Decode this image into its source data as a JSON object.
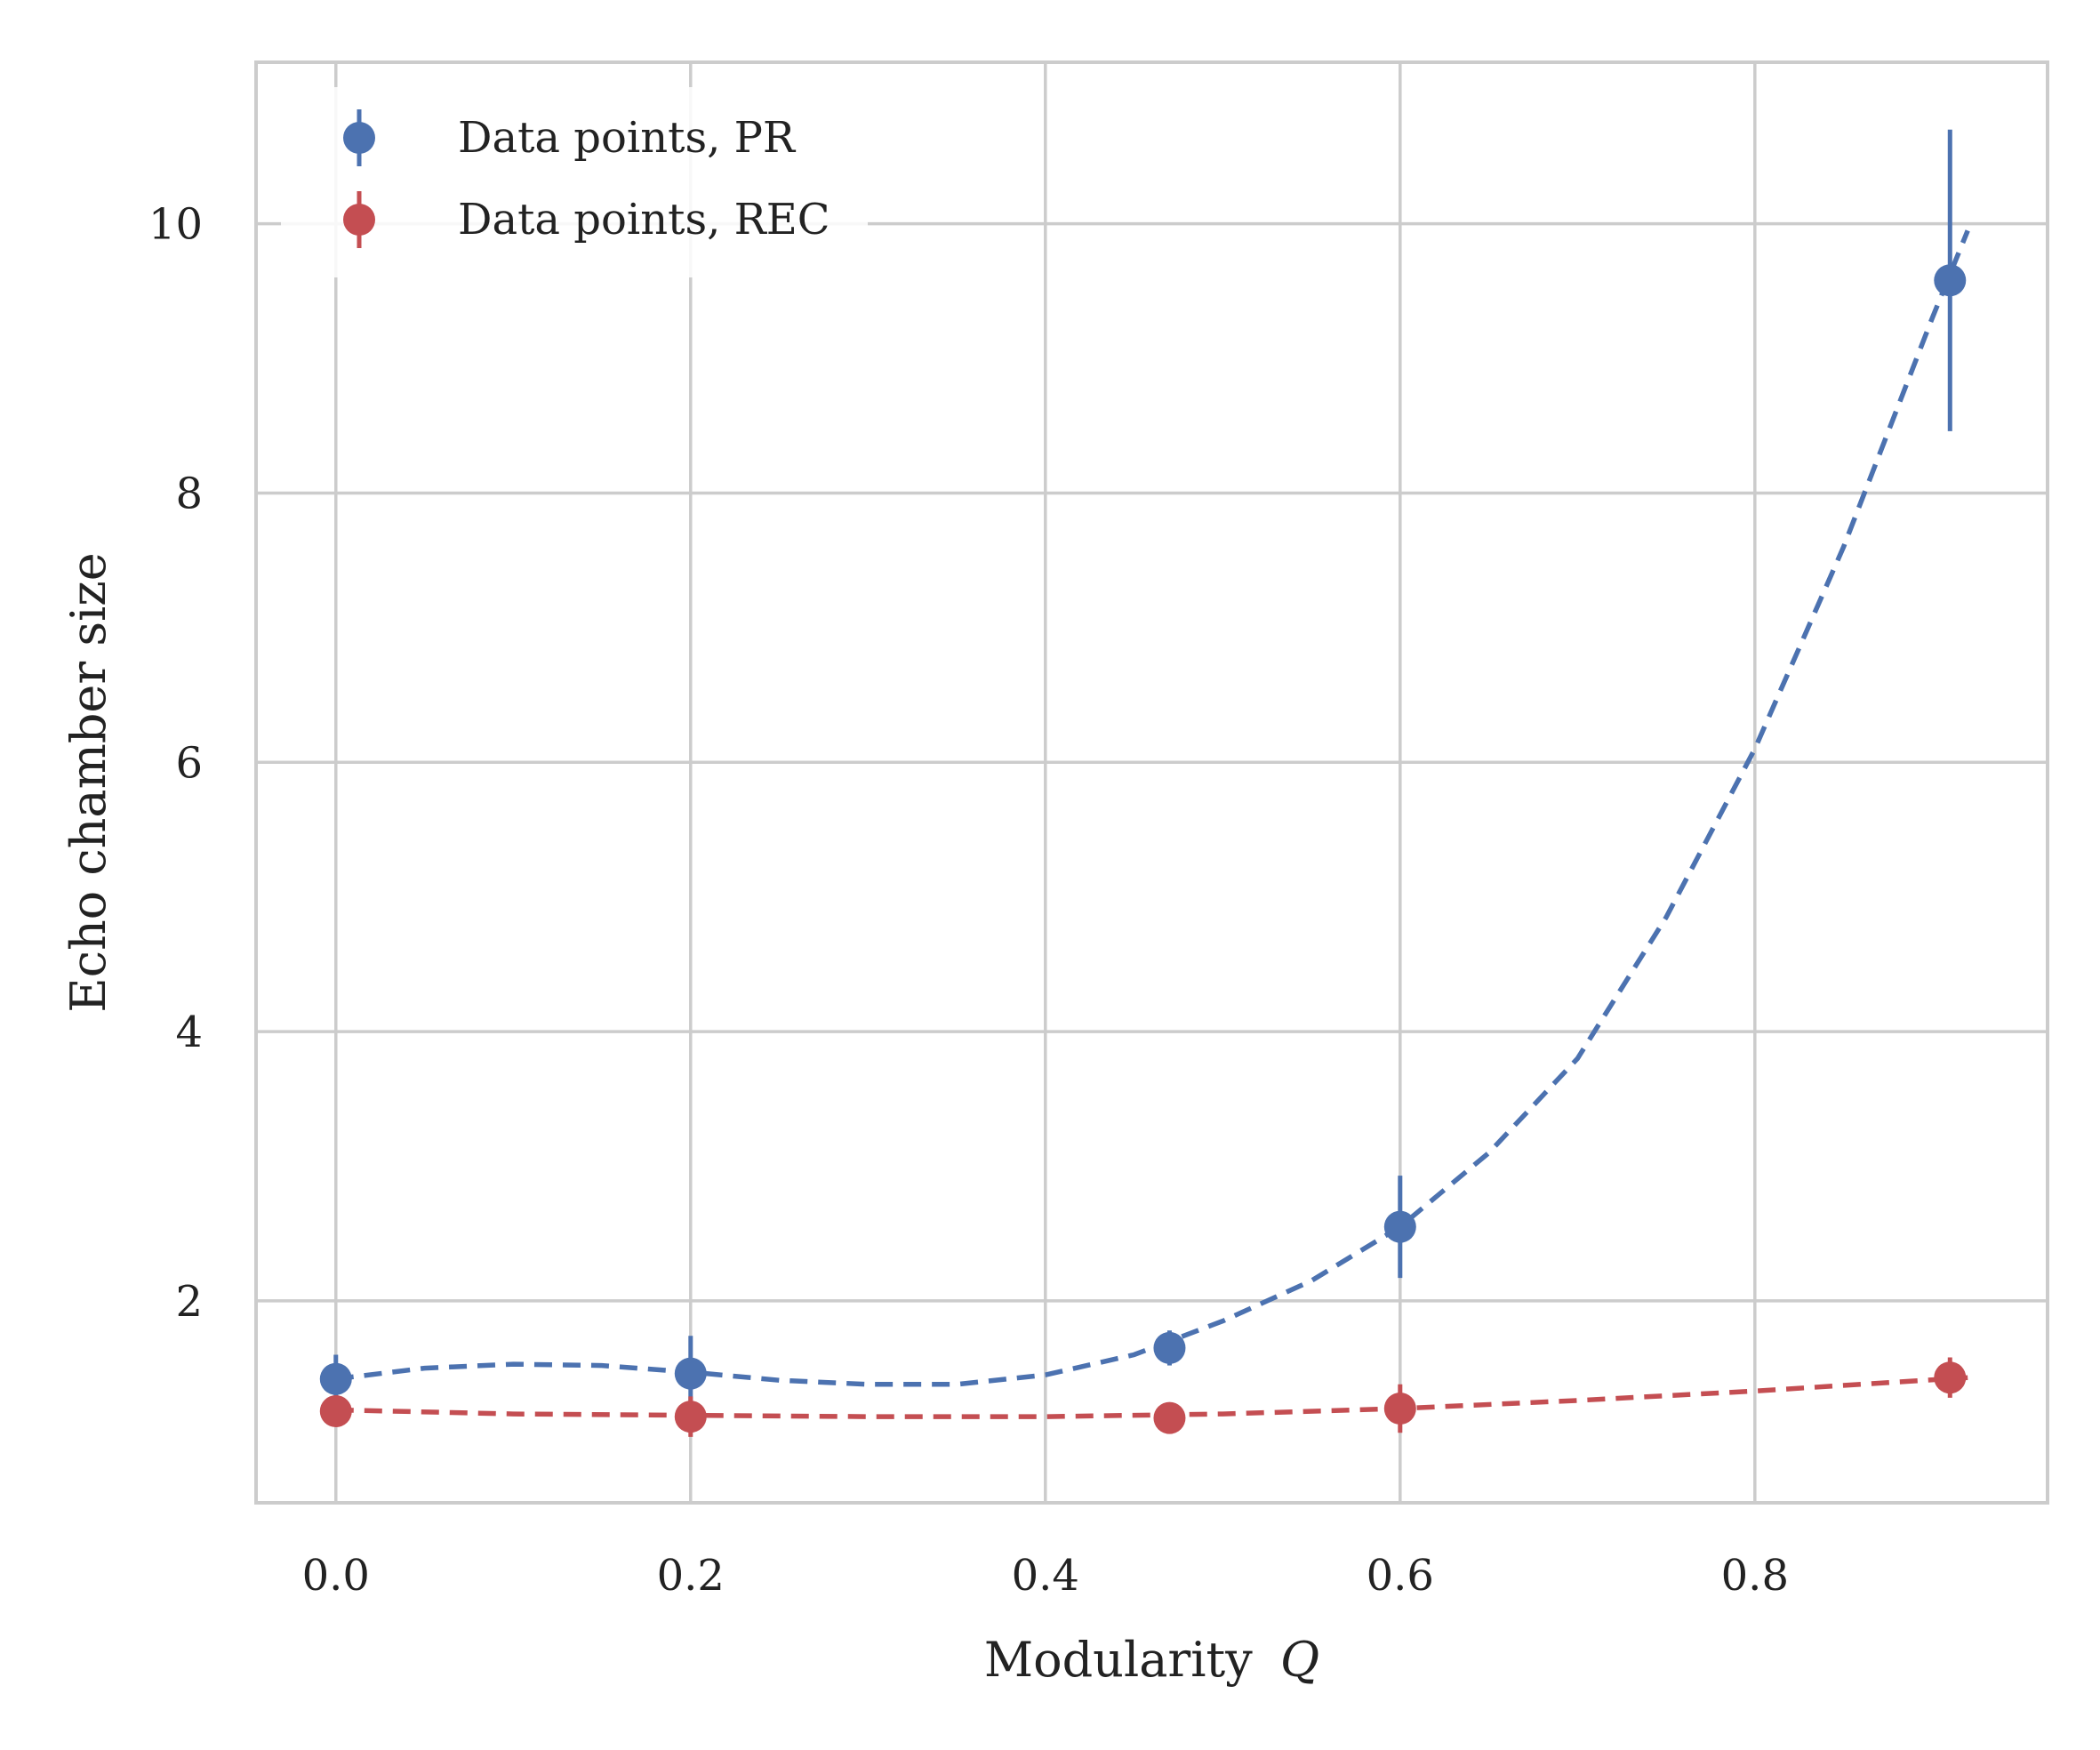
{
  "chart_data": {
    "type": "scatter",
    "xlabel": "Modularity",
    "xlabel_symbol": "Q",
    "ylabel": "Echo chamber size",
    "xlim": [
      -0.045,
      0.965
    ],
    "ylim": [
      0.5,
      11.2
    ],
    "xticks": [
      0.0,
      0.2,
      0.4,
      0.6,
      0.8
    ],
    "xtick_labels": [
      "0.0",
      "0.2",
      "0.4",
      "0.6",
      "0.8"
    ],
    "yticks": [
      2,
      4,
      6,
      8,
      10
    ],
    "ytick_labels": [
      "2",
      "4",
      "6",
      "8",
      "10"
    ],
    "grid": true,
    "legend_position": "top-left",
    "series": [
      {
        "name": "Data points, PR",
        "color": "#4C72B0",
        "x": [
          0.0,
          0.2,
          0.47,
          0.6,
          0.91
        ],
        "y": [
          1.42,
          1.46,
          1.65,
          2.55,
          9.58
        ],
        "yerr": [
          0.18,
          0.28,
          0.13,
          0.38,
          1.12
        ],
        "fit": {
          "style": "dashed",
          "x": [
            0.0,
            0.05,
            0.1,
            0.15,
            0.2,
            0.25,
            0.3,
            0.35,
            0.4,
            0.45,
            0.5,
            0.55,
            0.6,
            0.65,
            0.7,
            0.75,
            0.8,
            0.85,
            0.9,
            0.92
          ],
          "y": [
            1.42,
            1.5,
            1.53,
            1.52,
            1.47,
            1.41,
            1.38,
            1.38,
            1.45,
            1.6,
            1.85,
            2.15,
            2.55,
            3.1,
            3.8,
            4.85,
            6.1,
            7.6,
            9.3,
            9.95
          ]
        }
      },
      {
        "name": "Data points, REC",
        "color": "#C44E52",
        "x": [
          0.0,
          0.2,
          0.47,
          0.6,
          0.91
        ],
        "y": [
          1.18,
          1.14,
          1.13,
          1.2,
          1.43
        ],
        "yerr": [
          0.1,
          0.15,
          0.08,
          0.18,
          0.15
        ],
        "fit": {
          "style": "dashed",
          "x": [
            0.0,
            0.1,
            0.2,
            0.3,
            0.4,
            0.5,
            0.6,
            0.7,
            0.8,
            0.92
          ],
          "y": [
            1.19,
            1.16,
            1.15,
            1.14,
            1.14,
            1.16,
            1.2,
            1.26,
            1.33,
            1.43
          ]
        }
      }
    ]
  }
}
